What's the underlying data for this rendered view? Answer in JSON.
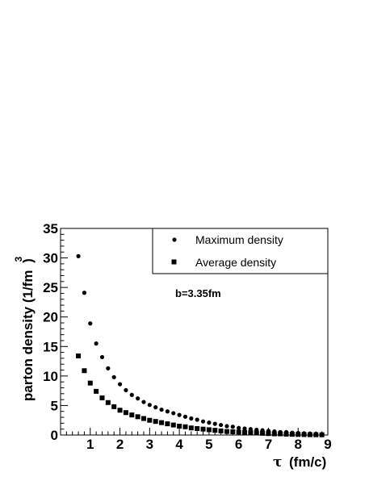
{
  "chart_data": {
    "type": "scatter",
    "title": "",
    "xlabel_symbol": "τ",
    "xlabel": "(fm/c)",
    "ylabel": "parton density (1/fm",
    "ylabel_sup": "3",
    "ylabel_close": ")",
    "xlim": [
      0,
      9
    ],
    "ylim": [
      0,
      35
    ],
    "x_ticks": [
      1,
      2,
      3,
      4,
      5,
      6,
      7,
      8,
      9
    ],
    "y_ticks": [
      0,
      5,
      10,
      15,
      20,
      25,
      30,
      35
    ],
    "grid": false,
    "legend_position": "top-right",
    "annotation": "b=3.35fm",
    "series": [
      {
        "name": "Maximum density",
        "marker": "circle",
        "color": "#000000",
        "x": [
          0.6,
          0.8,
          1.0,
          1.2,
          1.4,
          1.6,
          1.8,
          2.0,
          2.2,
          2.4,
          2.6,
          2.8,
          3.0,
          3.2,
          3.4,
          3.6,
          3.8,
          4.0,
          4.2,
          4.4,
          4.6,
          4.8,
          5.0,
          5.2,
          5.4,
          5.6,
          5.8,
          6.0,
          6.2,
          6.4,
          6.6,
          6.8,
          7.0,
          7.2,
          7.4,
          7.6,
          7.8,
          8.0,
          8.2,
          8.4,
          8.6,
          8.8
        ],
        "y": [
          30.3,
          24.1,
          18.9,
          15.5,
          13.2,
          11.3,
          9.8,
          8.6,
          7.6,
          6.8,
          6.2,
          5.6,
          5.1,
          4.7,
          4.3,
          4.0,
          3.7,
          3.4,
          3.1,
          2.8,
          2.6,
          2.3,
          2.1,
          1.9,
          1.7,
          1.5,
          1.4,
          1.2,
          1.1,
          1.0,
          0.9,
          0.8,
          0.7,
          0.6,
          0.5,
          0.5,
          0.4,
          0.35,
          0.3,
          0.25,
          0.2,
          0.15
        ]
      },
      {
        "name": "Average density",
        "marker": "square",
        "color": "#000000",
        "x": [
          0.6,
          0.8,
          1.0,
          1.2,
          1.4,
          1.6,
          1.8,
          2.0,
          2.2,
          2.4,
          2.6,
          2.8,
          3.0,
          3.2,
          3.4,
          3.6,
          3.8,
          4.0,
          4.2,
          4.4,
          4.6,
          4.8,
          5.0,
          5.2,
          5.4,
          5.6,
          5.8,
          6.0,
          6.2,
          6.4,
          6.6,
          6.8,
          7.0,
          7.2,
          7.4,
          7.6,
          7.8,
          8.0,
          8.2,
          8.4,
          8.6,
          8.8
        ],
        "y": [
          13.4,
          10.9,
          8.8,
          7.4,
          6.3,
          5.5,
          4.8,
          4.2,
          3.8,
          3.4,
          3.1,
          2.8,
          2.5,
          2.3,
          2.1,
          1.9,
          1.7,
          1.5,
          1.4,
          1.2,
          1.1,
          1.0,
          0.9,
          0.8,
          0.7,
          0.6,
          0.55,
          0.5,
          0.45,
          0.4,
          0.35,
          0.3,
          0.25,
          0.2,
          0.2,
          0.15,
          0.12,
          0.1,
          0.08,
          0.06,
          0.05,
          0.04
        ]
      }
    ]
  }
}
